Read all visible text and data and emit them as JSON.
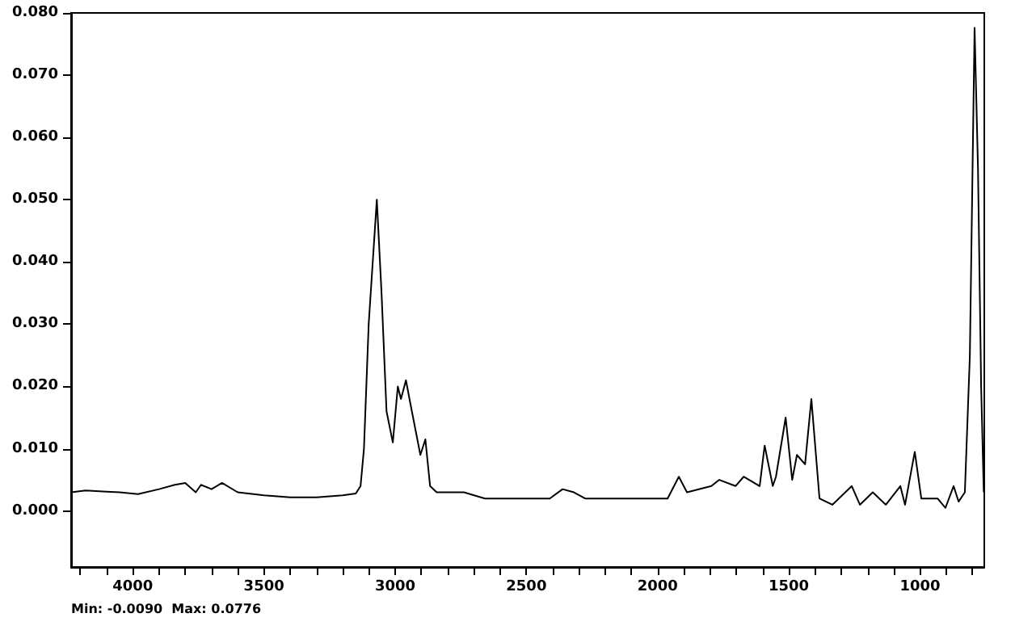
{
  "chart_data": {
    "type": "line",
    "annotations": [
      "Min: -0.0090  Max: 0.0776"
    ],
    "xlim": [
      4235,
      755
    ],
    "ylim": [
      -0.009,
      0.08
    ],
    "xticks": [
      {
        "value": 4200,
        "label": null
      },
      {
        "value": 4100,
        "label": null
      },
      4000,
      {
        "value": 3900,
        "label": null
      },
      {
        "value": 3800,
        "label": null
      },
      {
        "value": 3700,
        "label": null
      },
      {
        "value": 3600,
        "label": null
      },
      3500,
      {
        "value": 3400,
        "label": null
      },
      {
        "value": 3300,
        "label": null
      },
      {
        "value": 3200,
        "label": null
      },
      {
        "value": 3100,
        "label": null
      },
      3000,
      {
        "value": 2900,
        "label": null
      },
      {
        "value": 2800,
        "label": null
      },
      {
        "value": 2700,
        "label": null
      },
      {
        "value": 2600,
        "label": null
      },
      2500,
      {
        "value": 2400,
        "label": null
      },
      {
        "value": 2300,
        "label": null
      },
      {
        "value": 2200,
        "label": null
      },
      {
        "value": 2100,
        "label": null
      },
      2000,
      {
        "value": 1900,
        "label": null
      },
      {
        "value": 1800,
        "label": null
      },
      {
        "value": 1700,
        "label": null
      },
      {
        "value": 1600,
        "label": null
      },
      1500,
      {
        "value": 1400,
        "label": null
      },
      {
        "value": 1300,
        "label": null
      },
      {
        "value": 1200,
        "label": null
      },
      {
        "value": 1100,
        "label": null
      },
      1000,
      {
        "value": 900,
        "label": null
      },
      {
        "value": 800,
        "label": null
      }
    ],
    "yticks": [
      {
        "value": 0,
        "label": "0.000"
      },
      {
        "value": 0.01,
        "label": "0.010"
      },
      {
        "value": 0.02,
        "label": "0.020"
      },
      {
        "value": 0.03,
        "label": "0.030"
      },
      {
        "value": 0.04,
        "label": "0.040"
      },
      {
        "value": 0.05,
        "label": "0.050"
      },
      {
        "value": 0.06,
        "label": "0.060"
      },
      {
        "value": 0.07,
        "label": "0.070"
      },
      {
        "value": 0.08,
        "label": "0.080"
      }
    ],
    "grid": false,
    "marker": "none",
    "line_style": "solid",
    "series": [
      {
        "color": "#000000",
        "x": [
          4234,
          4180,
          4100,
          4050,
          3980,
          3900,
          3840,
          3800,
          3760,
          3740,
          3700,
          3660,
          3600,
          3500,
          3400,
          3300,
          3200,
          3150,
          3132,
          3119,
          3101,
          3070,
          3052,
          3033,
          3009,
          2990,
          2978,
          2959,
          2941,
          2904,
          2885,
          2867,
          2842,
          2738,
          2658,
          2411,
          2362,
          2319,
          2276,
          2042,
          1962,
          1919,
          1888,
          1795,
          1765,
          1703,
          1672,
          1611,
          1592,
          1561,
          1549,
          1512,
          1487,
          1469,
          1438,
          1414,
          1383,
          1334,
          1260,
          1229,
          1180,
          1130,
          1075,
          1057,
          1020,
          995,
          933,
          903,
          872,
          853,
          829,
          810,
          792,
          779,
          767,
          757
        ],
        "values": [
          0.003,
          0.0033,
          0.0031,
          0.003,
          0.0027,
          0.0035,
          0.0042,
          0.0045,
          0.003,
          0.0042,
          0.0035,
          0.0045,
          0.003,
          0.0025,
          0.0022,
          0.0022,
          0.0025,
          0.0028,
          0.004,
          0.01,
          0.03,
          0.05,
          0.035,
          0.016,
          0.011,
          0.02,
          0.018,
          0.021,
          0.017,
          0.009,
          0.0115,
          0.004,
          0.003,
          0.003,
          0.002,
          0.002,
          0.0035,
          0.003,
          0.002,
          0.002,
          0.002,
          0.0055,
          0.003,
          0.004,
          0.005,
          0.004,
          0.0055,
          0.004,
          0.0105,
          0.004,
          0.0055,
          0.015,
          0.005,
          0.009,
          0.0075,
          0.018,
          0.002,
          0.001,
          0.004,
          0.001,
          0.003,
          0.001,
          0.004,
          0.001,
          0.0095,
          0.002,
          0.002,
          0.0005,
          0.004,
          0.0015,
          0.003,
          0.025,
          0.0776,
          0.055,
          0.02,
          0.003
        ]
      }
    ]
  }
}
